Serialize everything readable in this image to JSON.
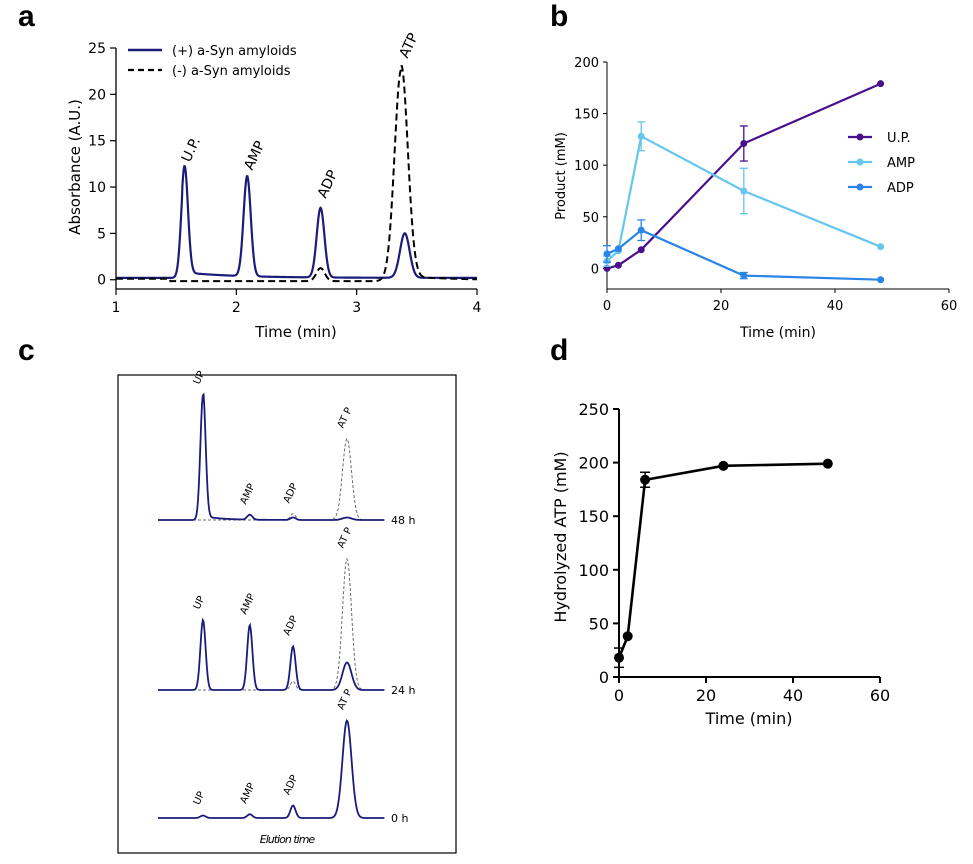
{
  "panel_labels": [
    "a",
    "b",
    "c",
    "d"
  ],
  "colors": {
    "navy": "#1b1c7a",
    "purple": "#4a0f8c",
    "light_blue": "#66c6ee",
    "blue": "#2a85e6",
    "black": "#000000",
    "gray": "#6b6b6b"
  },
  "chart_data": [
    {
      "panel": "a",
      "type": "line",
      "xlabel": "Time (min)",
      "ylabel": "Absorbance (A.U.)",
      "xlim": [
        1,
        4
      ],
      "ylim": [
        -1,
        25
      ],
      "xticks": [
        1,
        2,
        3,
        4
      ],
      "yticks": [
        0,
        5,
        10,
        15,
        20,
        25
      ],
      "legend": [
        "(+) a-Syn amyloids",
        "(-) a-Syn amyloids"
      ],
      "peak_labels": [
        {
          "text": "U.P.",
          "time": 1.57
        },
        {
          "text": "AMP",
          "time": 2.09
        },
        {
          "text": "ADP",
          "time": 2.7
        },
        {
          "text": "ATP",
          "time": 3.38
        }
      ],
      "series": [
        {
          "name": "(+) a-Syn amyloids",
          "style": "solid",
          "peaks": [
            {
              "time": 1.57,
              "height": 11.5
            },
            {
              "time": 2.09,
              "height": 10.8
            },
            {
              "time": 2.7,
              "height": 7.5
            },
            {
              "time": 3.4,
              "height": 4.8
            }
          ]
        },
        {
          "name": "(-) a-Syn amyloids",
          "style": "dashed",
          "peaks": [
            {
              "time": 2.7,
              "height": 1.4
            },
            {
              "time": 3.37,
              "height": 22.8
            }
          ]
        }
      ]
    },
    {
      "panel": "b",
      "type": "line",
      "xlabel": "Time (min)",
      "ylabel": "Product (mM)",
      "xlim": [
        0,
        60
      ],
      "ylim": [
        -20,
        200
      ],
      "xticks": [
        0,
        20,
        40,
        60
      ],
      "yticks": [
        0,
        50,
        100,
        150,
        200
      ],
      "series": [
        {
          "name": "U.P.",
          "x": [
            0,
            2,
            6,
            24,
            48
          ],
          "values": [
            0,
            3,
            18,
            121,
            179
          ],
          "err": [
            0,
            0,
            0,
            17,
            0
          ]
        },
        {
          "name": "AMP",
          "x": [
            0,
            2,
            6,
            24,
            48
          ],
          "values": [
            7,
            17,
            128,
            75,
            21
          ],
          "err": [
            5,
            0,
            14,
            22,
            0
          ]
        },
        {
          "name": "ADP",
          "x": [
            0,
            2,
            6,
            24,
            48
          ],
          "values": [
            14,
            19,
            37,
            -7,
            -11
          ],
          "err": [
            8,
            0,
            10,
            3,
            0
          ]
        }
      ]
    },
    {
      "panel": "c",
      "type": "line",
      "xlabel": "Elution time",
      "traces": [
        {
          "label": "48 h",
          "solid_peaks": {
            "UP": 1.0,
            "AMP": 0.04,
            "ADP": 0.02,
            "ATP": 0.02
          },
          "dashed_peaks": {
            "ADP": 0.05,
            "ATP": 0.65
          }
        },
        {
          "label": "24 h",
          "solid_peaks": {
            "UP": 0.56,
            "AMP": 0.52,
            "ADP": 0.35,
            "ATP": 0.22
          },
          "dashed_peaks": {
            "ADP": 0.07,
            "ATP": 1.05
          }
        },
        {
          "label": "0 h",
          "solid_peaks": {
            "UP": 0.02,
            "AMP": 0.03,
            "ADP": 0.1,
            "ATP": 0.78
          },
          "dashed_peaks": {}
        }
      ],
      "peak_names": [
        "UP",
        "AMP",
        "ADP",
        "AT P"
      ]
    },
    {
      "panel": "d",
      "type": "line",
      "xlabel": "Time (min)",
      "ylabel": "Hydrolyzed ATP (mM)",
      "xlim": [
        0,
        60
      ],
      "ylim": [
        0,
        250
      ],
      "xticks": [
        0,
        20,
        40,
        60
      ],
      "yticks": [
        0,
        50,
        100,
        150,
        200,
        250
      ],
      "series": [
        {
          "name": "Hydrolyzed ATP",
          "x": [
            0,
            2,
            6,
            24,
            48
          ],
          "values": [
            18,
            38,
            184,
            197,
            199
          ],
          "err": [
            9,
            0,
            7,
            0,
            0
          ]
        }
      ]
    }
  ]
}
